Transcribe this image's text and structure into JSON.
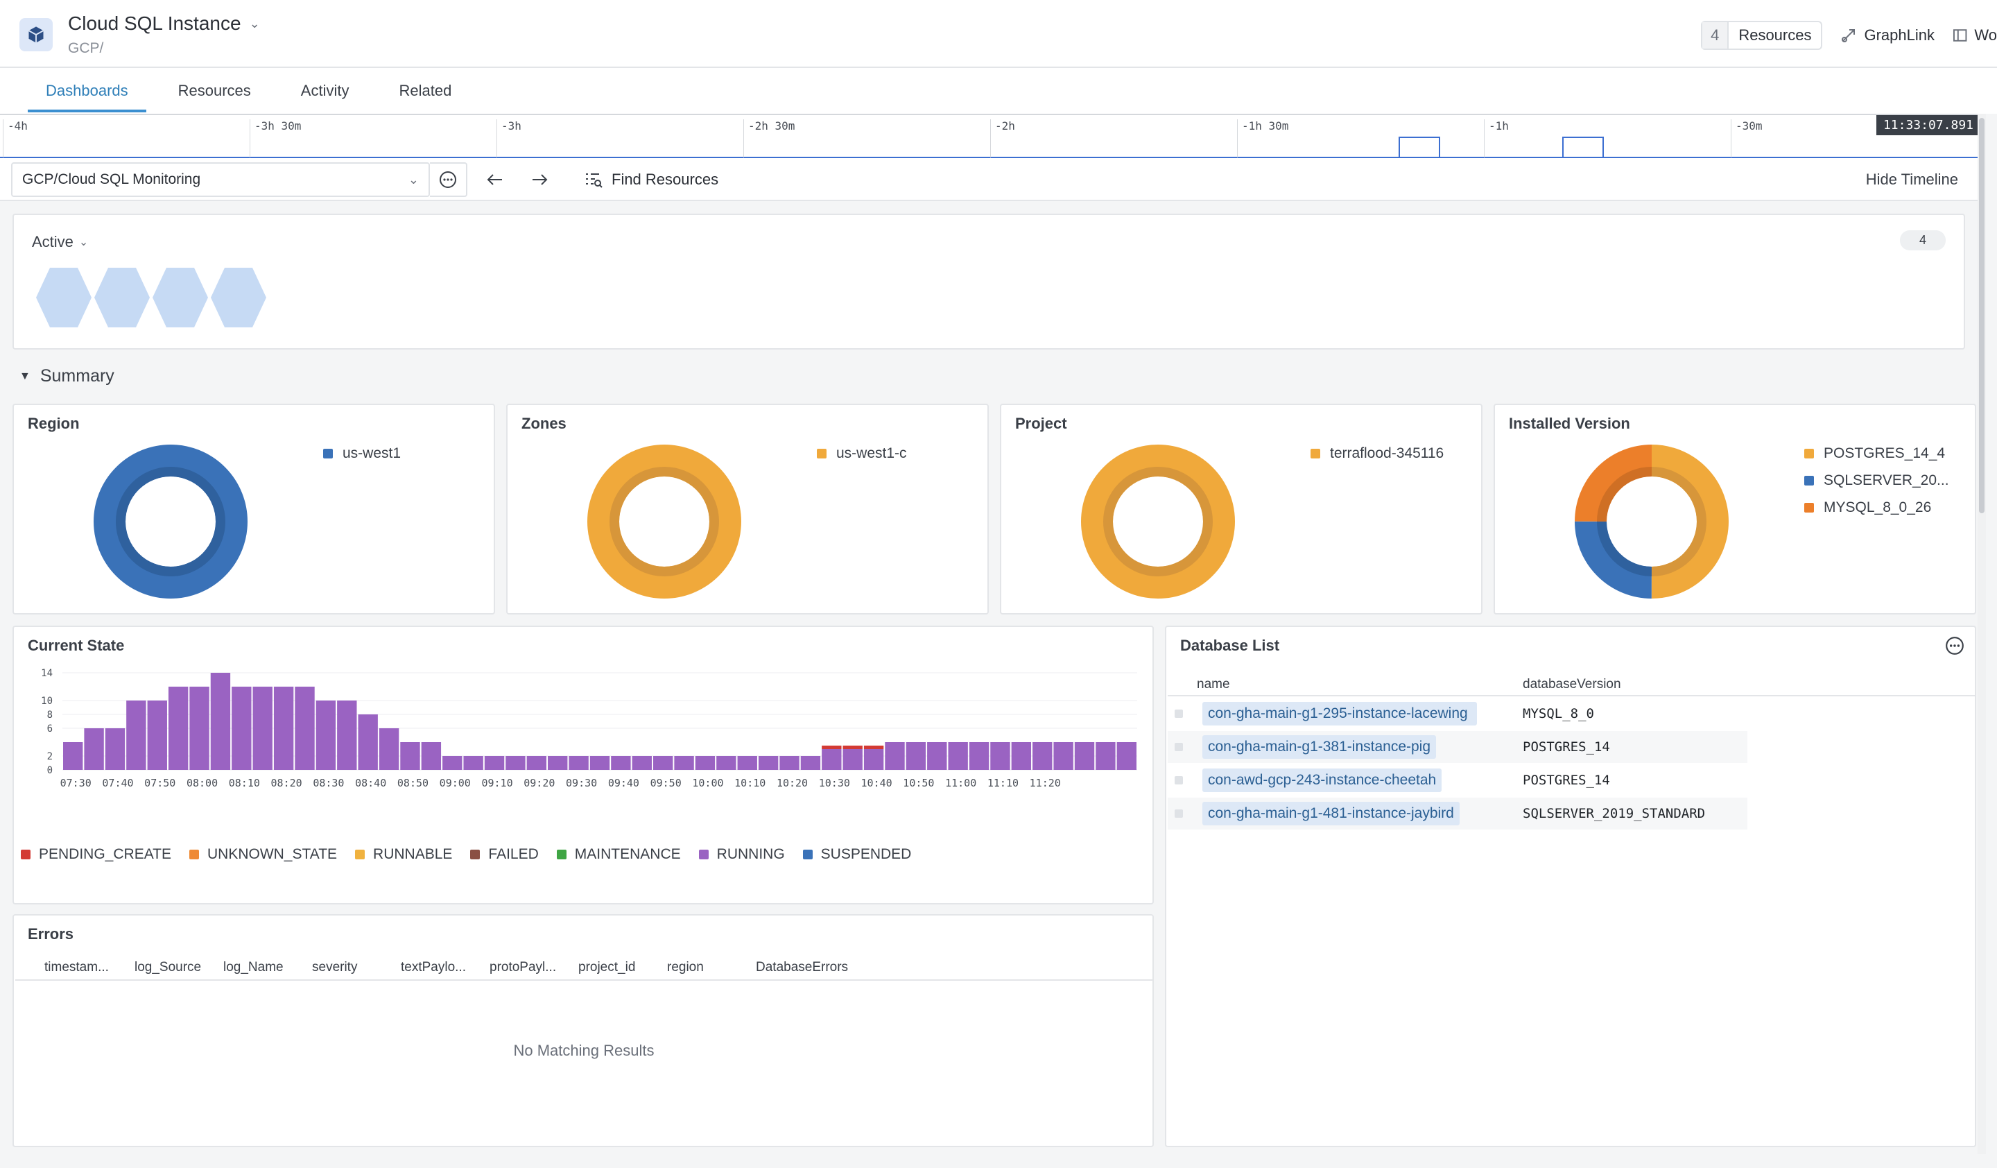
{
  "header": {
    "title": "Cloud SQL Instance",
    "subtitle": "GCP/",
    "resources_count": "4",
    "resources_label": "Resources",
    "graphlink_label": "GraphLink",
    "extra_label": "Wo"
  },
  "tabs": [
    {
      "label": "Dashboards",
      "active": true
    },
    {
      "label": "Resources",
      "active": false
    },
    {
      "label": "Activity",
      "active": false
    },
    {
      "label": "Related",
      "active": false
    }
  ],
  "timeline": {
    "ticks": [
      "-4h",
      "-3h 30m",
      "-3h",
      "-2h 30m",
      "-2h",
      "-1h 30m",
      "-1h",
      "-30m"
    ],
    "now": "11:33:07.891"
  },
  "toolbar": {
    "dashboard": "GCP/Cloud SQL Monitoring",
    "find_resources": "Find Resources",
    "hide_timeline": "Hide Timeline"
  },
  "active_panel": {
    "label": "Active",
    "count": "4",
    "hexagons": 4
  },
  "summary": {
    "heading": "Summary",
    "panels": [
      {
        "title": "Region",
        "legend": [
          {
            "label": "us-west1",
            "color": "#3a72b8"
          }
        ]
      },
      {
        "title": "Zones",
        "legend": [
          {
            "label": "us-west1-c",
            "color": "#f0a93b"
          }
        ]
      },
      {
        "title": "Project",
        "legend": [
          {
            "label": "terraflood-345116",
            "color": "#f0a93b"
          }
        ]
      },
      {
        "title": "Installed Version",
        "legend": [
          {
            "label": "POSTGRES_14_4",
            "color": "#f0a93b"
          },
          {
            "label": "SQLSERVER_20...",
            "color": "#3a72b8"
          },
          {
            "label": "MYSQL_8_0_26",
            "color": "#ec7f2a"
          }
        ]
      }
    ]
  },
  "current_state": {
    "title": "Current State",
    "legend": [
      {
        "label": "PENDING_CREATE",
        "color": "#d33a34"
      },
      {
        "label": "UNKNOWN_STATE",
        "color": "#ef8a35"
      },
      {
        "label": "RUNNABLE",
        "color": "#f0b23f"
      },
      {
        "label": "FAILED",
        "color": "#8a5044"
      },
      {
        "label": "MAINTENANCE",
        "color": "#3fa544"
      },
      {
        "label": "RUNNING",
        "color": "#9a63c2"
      },
      {
        "label": "SUSPENDED",
        "color": "#3a72b8"
      }
    ]
  },
  "chart_data": {
    "type": "bar",
    "title": "Current State",
    "y_ticks": [
      "0",
      "2",
      "6",
      "8",
      "10",
      "14"
    ],
    "ylim": [
      0,
      14
    ],
    "x_ticks": [
      "07:30",
      "07:40",
      "07:50",
      "08:00",
      "08:10",
      "08:20",
      "08:30",
      "08:40",
      "08:50",
      "09:00",
      "09:10",
      "09:20",
      "09:30",
      "09:40",
      "09:50",
      "10:00",
      "10:10",
      "10:20",
      "10:30",
      "10:40",
      "10:50",
      "11:00",
      "11:10",
      "11:20"
    ],
    "series": [
      {
        "name": "RUNNING",
        "values": [
          4,
          6,
          6,
          10,
          10,
          12,
          12,
          14,
          12,
          12,
          12,
          12,
          10,
          10,
          8,
          6,
          4,
          4,
          2,
          2,
          2,
          2,
          2,
          2,
          2,
          2,
          2,
          2,
          2,
          2,
          2,
          2,
          2,
          2,
          2,
          2,
          3,
          3,
          3,
          4,
          4,
          4,
          4,
          4,
          4,
          4,
          4,
          4,
          4,
          4,
          4
        ]
      },
      {
        "name": "PENDING_CREATE",
        "values": [
          0,
          0,
          0,
          0,
          0,
          0,
          0,
          0,
          0,
          0,
          0,
          0,
          0,
          0,
          0,
          0,
          0,
          0,
          0,
          0,
          0,
          0,
          0,
          0,
          0,
          0,
          0,
          0,
          0,
          0,
          0,
          0,
          0,
          0,
          0,
          0,
          1,
          1,
          1,
          0,
          0,
          0,
          0,
          0,
          0,
          0,
          0,
          0,
          0,
          0,
          0
        ]
      }
    ]
  },
  "database_list": {
    "title": "Database List",
    "columns": [
      "name",
      "databaseVersion"
    ],
    "rows": [
      {
        "name": "con-gha-main-g1-295-instance-lacewing",
        "version": "MYSQL_8_0"
      },
      {
        "name": "con-gha-main-g1-381-instance-pig",
        "version": "POSTGRES_14"
      },
      {
        "name": "con-awd-gcp-243-instance-cheetah",
        "version": "POSTGRES_14"
      },
      {
        "name": "con-gha-main-g1-481-instance-jaybird",
        "version": "SQLSERVER_2019_STANDARD"
      }
    ]
  },
  "errors": {
    "title": "Errors",
    "columns": [
      "timestam...",
      "log_Source",
      "log_Name",
      "severity",
      "textPaylo...",
      "protoPayl...",
      "project_id",
      "region",
      "DatabaseErrors"
    ],
    "empty": "No Matching Results"
  }
}
